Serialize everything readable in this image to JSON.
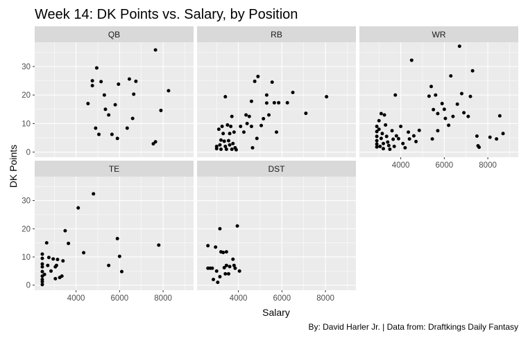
{
  "chart_data": {
    "type": "scatter",
    "title": "Week 14: DK Points vs. Salary, by Position",
    "xlabel": "Salary",
    "ylabel": "DK Points",
    "caption": "By: David Harler Jr. | Data from: Draftkings Daily Fantasy",
    "xlim": [
      2100,
      9400
    ],
    "ylim": [
      -1.8,
      38.5
    ],
    "x_ticks": [
      4000,
      6000,
      8000
    ],
    "y_ticks": [
      0,
      10,
      20,
      30
    ],
    "grid": true,
    "legend": "none",
    "facets": [
      "QB",
      "RB",
      "WR",
      "TE",
      "DST"
    ],
    "colors": {
      "panel_bg": "#ebebeb",
      "strip_bg": "#d9d9d9",
      "grid_major": "#ffffff",
      "point": "#000000"
    },
    "series": [
      {
        "facet": "QB",
        "points": [
          [
            4550,
            17
          ],
          [
            4750,
            25
          ],
          [
            4750,
            23.3
          ],
          [
            4950,
            29.5
          ],
          [
            5050,
            6.2
          ],
          [
            4900,
            8.4
          ],
          [
            5150,
            24.7
          ],
          [
            5300,
            20
          ],
          [
            5350,
            15
          ],
          [
            5500,
            13
          ],
          [
            5650,
            6.2
          ],
          [
            5800,
            16.6
          ],
          [
            5900,
            4.8
          ],
          [
            5950,
            23.8
          ],
          [
            6350,
            8.4
          ],
          [
            6450,
            25.6
          ],
          [
            6650,
            20.3
          ],
          [
            6750,
            24.8
          ],
          [
            6600,
            11.8
          ],
          [
            7550,
            2.9
          ],
          [
            7650,
            3.6
          ],
          [
            7650,
            35.8
          ],
          [
            7900,
            14.6
          ],
          [
            8250,
            21.5
          ]
        ]
      },
      {
        "facet": "RB",
        "points": [
          [
            3000,
            2
          ],
          [
            3000,
            1.2
          ],
          [
            3100,
            8
          ],
          [
            3150,
            2.5
          ],
          [
            3200,
            1
          ],
          [
            3200,
            4.2
          ],
          [
            3250,
            9
          ],
          [
            3300,
            6.5
          ],
          [
            3350,
            3.8
          ],
          [
            3400,
            19.4
          ],
          [
            3400,
            2
          ],
          [
            3450,
            1
          ],
          [
            3500,
            9.5
          ],
          [
            3550,
            4
          ],
          [
            3600,
            6.5
          ],
          [
            3600,
            2.5
          ],
          [
            3650,
            9
          ],
          [
            3700,
            12.5
          ],
          [
            3700,
            1
          ],
          [
            3750,
            3
          ],
          [
            3800,
            7
          ],
          [
            3850,
            1.5
          ],
          [
            3900,
            0.8
          ],
          [
            4100,
            9
          ],
          [
            4250,
            7
          ],
          [
            4350,
            13
          ],
          [
            4400,
            10
          ],
          [
            4500,
            12.5
          ],
          [
            4600,
            17.8
          ],
          [
            4600,
            9
          ],
          [
            4650,
            1.5
          ],
          [
            4750,
            24.8
          ],
          [
            4850,
            4.8
          ],
          [
            4900,
            26.5
          ],
          [
            5050,
            9.3
          ],
          [
            5150,
            11.7
          ],
          [
            5300,
            20
          ],
          [
            5300,
            17.2
          ],
          [
            5400,
            13
          ],
          [
            5550,
            24.5
          ],
          [
            5650,
            17.3
          ],
          [
            5750,
            7
          ],
          [
            5850,
            17.3
          ],
          [
            6250,
            17.3
          ],
          [
            6500,
            20.9
          ],
          [
            7100,
            13.6
          ],
          [
            8050,
            19.4
          ]
        ]
      },
      {
        "facet": "WR",
        "points": [
          [
            2900,
            9
          ],
          [
            2900,
            7.2
          ],
          [
            2900,
            5.5
          ],
          [
            2900,
            4
          ],
          [
            2900,
            2.8
          ],
          [
            2900,
            1.8
          ],
          [
            3000,
            11
          ],
          [
            3000,
            8
          ],
          [
            3050,
            2
          ],
          [
            3100,
            13.5
          ],
          [
            3100,
            4.8
          ],
          [
            3150,
            6.5
          ],
          [
            3200,
            3
          ],
          [
            3200,
            1.2
          ],
          [
            3250,
            13
          ],
          [
            3300,
            9.5
          ],
          [
            3350,
            5.5
          ],
          [
            3400,
            3.5
          ],
          [
            3450,
            2.3
          ],
          [
            3500,
            1
          ],
          [
            3600,
            7.5
          ],
          [
            3650,
            4.5
          ],
          [
            3700,
            2
          ],
          [
            3750,
            20
          ],
          [
            3800,
            5.7
          ],
          [
            3900,
            4.7
          ],
          [
            4000,
            9
          ],
          [
            4100,
            3
          ],
          [
            4200,
            1.5
          ],
          [
            4350,
            7
          ],
          [
            4400,
            4.6
          ],
          [
            4500,
            32.2
          ],
          [
            4600,
            5.7
          ],
          [
            4700,
            3.7
          ],
          [
            4850,
            7.6
          ],
          [
            5300,
            19.6
          ],
          [
            5400,
            23
          ],
          [
            5450,
            4.6
          ],
          [
            5500,
            14.9
          ],
          [
            5600,
            20
          ],
          [
            5700,
            7.5
          ],
          [
            5700,
            13.5
          ],
          [
            5900,
            17
          ],
          [
            6000,
            15
          ],
          [
            6050,
            11.8
          ],
          [
            6200,
            9.4
          ],
          [
            6300,
            26.7
          ],
          [
            6400,
            12.5
          ],
          [
            6600,
            16.8
          ],
          [
            6700,
            37.1
          ],
          [
            6800,
            20.5
          ],
          [
            6900,
            13.8
          ],
          [
            7100,
            12.5
          ],
          [
            7200,
            19.5
          ],
          [
            7300,
            28.5
          ],
          [
            7500,
            5.6
          ],
          [
            7550,
            2.2
          ],
          [
            7600,
            1.7
          ],
          [
            8100,
            5.2
          ],
          [
            8400,
            4.6
          ],
          [
            8550,
            12.7
          ],
          [
            8700,
            6.5
          ]
        ]
      },
      {
        "facet": "TE",
        "points": [
          [
            2450,
            11
          ],
          [
            2450,
            9.5
          ],
          [
            2450,
            7.5
          ],
          [
            2450,
            6.5
          ],
          [
            2450,
            4.8
          ],
          [
            2450,
            3.2
          ],
          [
            2450,
            2
          ],
          [
            2450,
            1.2
          ],
          [
            2450,
            0.2
          ],
          [
            2550,
            3.8
          ],
          [
            2650,
            15
          ],
          [
            2700,
            7
          ],
          [
            2750,
            9.8
          ],
          [
            2850,
            5
          ],
          [
            2950,
            9.3
          ],
          [
            3050,
            2.3
          ],
          [
            3050,
            6.5
          ],
          [
            3100,
            7
          ],
          [
            3150,
            9.1
          ],
          [
            3250,
            2.7
          ],
          [
            3350,
            3.2
          ],
          [
            3400,
            8.6
          ],
          [
            3500,
            19.3
          ],
          [
            3650,
            14.8
          ],
          [
            4100,
            27.4
          ],
          [
            4350,
            11.5
          ],
          [
            4800,
            32.4
          ],
          [
            5500,
            7
          ],
          [
            5900,
            16.5
          ],
          [
            6000,
            10.2
          ],
          [
            6100,
            4.8
          ],
          [
            7800,
            14.2
          ]
        ]
      },
      {
        "facet": "DST",
        "points": [
          [
            2600,
            14
          ],
          [
            2600,
            6
          ],
          [
            2700,
            6
          ],
          [
            2800,
            6
          ],
          [
            2850,
            2
          ],
          [
            2950,
            13.5
          ],
          [
            3000,
            5
          ],
          [
            3050,
            1
          ],
          [
            3150,
            3
          ],
          [
            3150,
            20
          ],
          [
            3200,
            11.8
          ],
          [
            3300,
            11.6
          ],
          [
            3350,
            6.2
          ],
          [
            3400,
            4
          ],
          [
            3450,
            11.8
          ],
          [
            3450,
            7
          ],
          [
            3550,
            4
          ],
          [
            3600,
            6.6
          ],
          [
            3750,
            9.2
          ],
          [
            3800,
            7
          ],
          [
            3850,
            6
          ],
          [
            3950,
            21
          ],
          [
            4050,
            5
          ]
        ]
      }
    ]
  }
}
